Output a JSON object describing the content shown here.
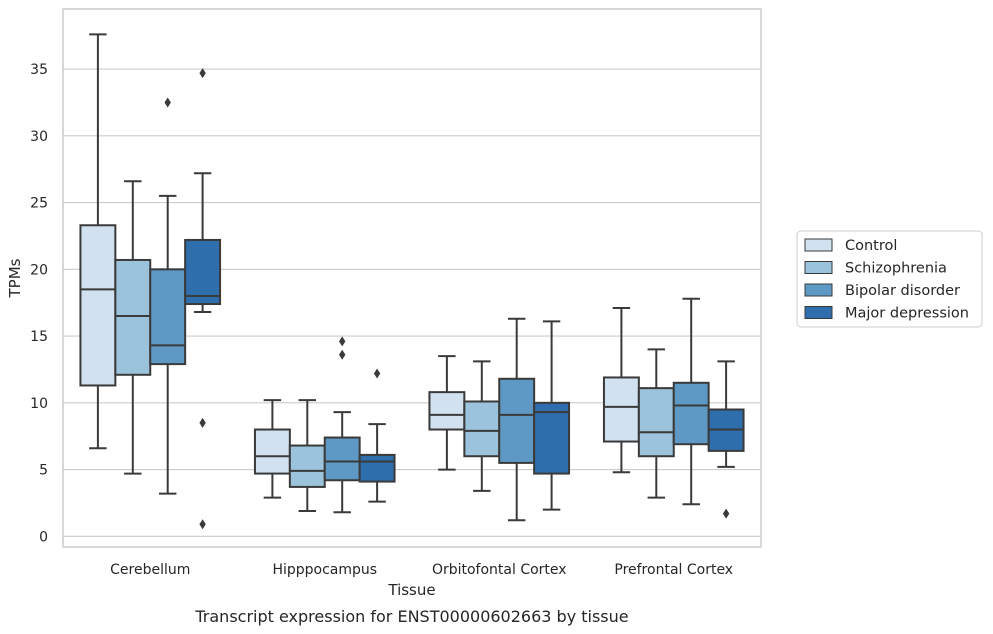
{
  "chart_data": {
    "type": "box",
    "caption": "Transcript expression for ENST00000602663 by tissue",
    "xlabel": "Tissue",
    "ylabel": "TPMs",
    "ylim": [
      -0.8,
      39.5
    ],
    "yticks": [
      0,
      5,
      10,
      15,
      20,
      25,
      30,
      35
    ],
    "ytick_labels": [
      "0",
      "5",
      "10",
      "15",
      "20",
      "25",
      "30",
      "35"
    ],
    "grid": "horizontal",
    "legend_position": "right",
    "categories": [
      "Cerebellum",
      "Hipppocampus",
      "Orbitofontal Cortex",
      "Prefrontal Cortex"
    ],
    "series": [
      {
        "name": "Control",
        "color": "#d1e1f0",
        "boxes": [
          {
            "whislo": 6.6,
            "q1": 11.3,
            "med": 18.5,
            "q3": 23.3,
            "whishi": 37.6,
            "fliers": []
          },
          {
            "whislo": 2.9,
            "q1": 4.7,
            "med": 6.0,
            "q3": 8.0,
            "whishi": 10.2,
            "fliers": []
          },
          {
            "whislo": 5.0,
            "q1": 8.0,
            "med": 9.1,
            "q3": 10.8,
            "whishi": 13.5,
            "fliers": []
          },
          {
            "whislo": 4.8,
            "q1": 7.1,
            "med": 9.7,
            "q3": 11.9,
            "whishi": 17.1,
            "fliers": []
          }
        ]
      },
      {
        "name": "Schizophrenia",
        "color": "#9bc3dc",
        "boxes": [
          {
            "whislo": 4.7,
            "q1": 12.1,
            "med": 16.5,
            "q3": 20.7,
            "whishi": 26.6,
            "fliers": []
          },
          {
            "whislo": 1.9,
            "q1": 3.7,
            "med": 4.9,
            "q3": 6.8,
            "whishi": 10.2,
            "fliers": []
          },
          {
            "whislo": 3.4,
            "q1": 6.0,
            "med": 7.9,
            "q3": 10.1,
            "whishi": 13.1,
            "fliers": []
          },
          {
            "whislo": 2.9,
            "q1": 6.0,
            "med": 7.8,
            "q3": 11.1,
            "whishi": 14.0,
            "fliers": []
          }
        ]
      },
      {
        "name": "Bipolar disorder",
        "color": "#5e99c5",
        "boxes": [
          {
            "whislo": 3.2,
            "q1": 12.9,
            "med": 14.3,
            "q3": 20.0,
            "whishi": 25.5,
            "fliers": [
              32.5
            ]
          },
          {
            "whislo": 1.8,
            "q1": 4.2,
            "med": 5.6,
            "q3": 7.4,
            "whishi": 9.3,
            "fliers": [
              13.6,
              14.6
            ]
          },
          {
            "whislo": 1.2,
            "q1": 5.5,
            "med": 9.1,
            "q3": 11.8,
            "whishi": 16.3,
            "fliers": []
          },
          {
            "whislo": 2.4,
            "q1": 6.9,
            "med": 9.8,
            "q3": 11.5,
            "whishi": 17.8,
            "fliers": []
          }
        ]
      },
      {
        "name": "Major depression",
        "color": "#2f6ead",
        "boxes": [
          {
            "whislo": 16.8,
            "q1": 17.4,
            "med": 18.0,
            "q3": 22.2,
            "whishi": 27.2,
            "fliers": [
              34.7,
              8.5,
              0.9
            ]
          },
          {
            "whislo": 2.6,
            "q1": 4.1,
            "med": 5.6,
            "q3": 6.1,
            "whishi": 8.4,
            "fliers": [
              12.2
            ]
          },
          {
            "whislo": 2.0,
            "q1": 4.7,
            "med": 9.3,
            "q3": 10.0,
            "whishi": 16.1,
            "fliers": []
          },
          {
            "whislo": 5.2,
            "q1": 6.4,
            "med": 8.0,
            "q3": 9.5,
            "whishi": 13.1,
            "fliers": [
              1.7
            ]
          }
        ]
      }
    ]
  }
}
